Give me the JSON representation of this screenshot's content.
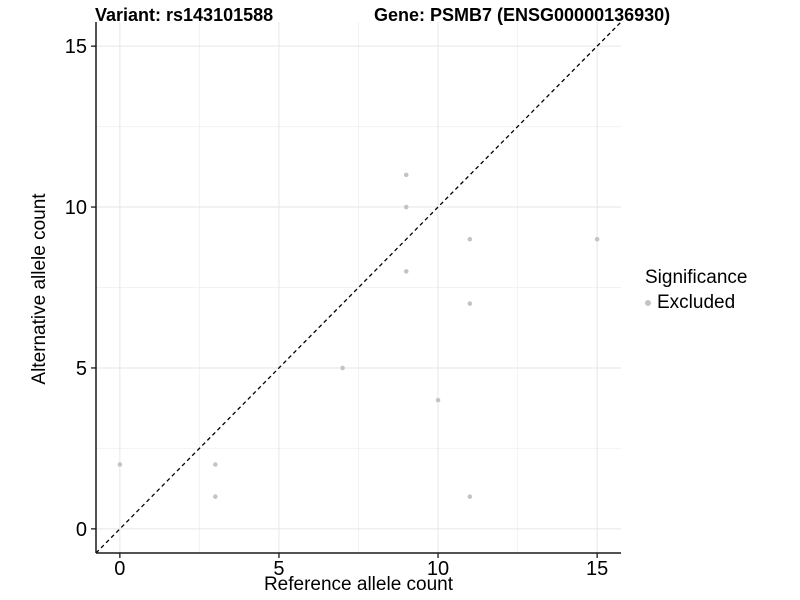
{
  "titles": {
    "variant": "Variant: rs143101588",
    "gene": "Gene: PSMB7 (ENSG00000136930)"
  },
  "axes": {
    "x_title": "Reference allele count",
    "y_title": "Alternative allele count",
    "x_tick_labels": [
      "0",
      "5",
      "10",
      "15"
    ],
    "y_tick_labels": [
      "0",
      "5",
      "10",
      "15"
    ]
  },
  "legend": {
    "title": "Significance",
    "items": [
      {
        "label": "Excluded",
        "color": "#c4c4c4"
      }
    ]
  },
  "colors": {
    "point": "#c4c4c4",
    "grid_major": "#e6e6e6",
    "grid_minor": "#f2f2f2",
    "axis": "#1a1a1a",
    "text": "#000000",
    "reference_line": "#000000",
    "background": "#ffffff"
  },
  "chart_data": {
    "type": "scatter",
    "title": "Variant: rs143101588 / Gene: PSMB7 (ENSG00000136930)",
    "xlabel": "Reference allele count",
    "ylabel": "Alternative allele count",
    "xlim": [
      -0.75,
      15.75
    ],
    "ylim": [
      -0.75,
      15.75
    ],
    "x_ticks": [
      0,
      5,
      10,
      15
    ],
    "y_ticks": [
      0,
      5,
      10,
      15
    ],
    "minor_gridlines": [
      2.5,
      7.5,
      12.5
    ],
    "grid": true,
    "legend_position": "right",
    "series": [
      {
        "name": "Excluded",
        "color": "#c4c4c4",
        "points": [
          [
            0,
            2
          ],
          [
            3,
            1
          ],
          [
            3,
            2
          ],
          [
            7,
            5
          ],
          [
            9,
            8
          ],
          [
            9,
            10
          ],
          [
            9,
            11
          ],
          [
            10,
            4
          ],
          [
            11,
            1
          ],
          [
            11,
            7
          ],
          [
            11,
            9
          ],
          [
            15,
            9
          ]
        ]
      }
    ],
    "reference_line": {
      "kind": "identity y=x",
      "style": "dashed",
      "color": "#000000"
    }
  }
}
